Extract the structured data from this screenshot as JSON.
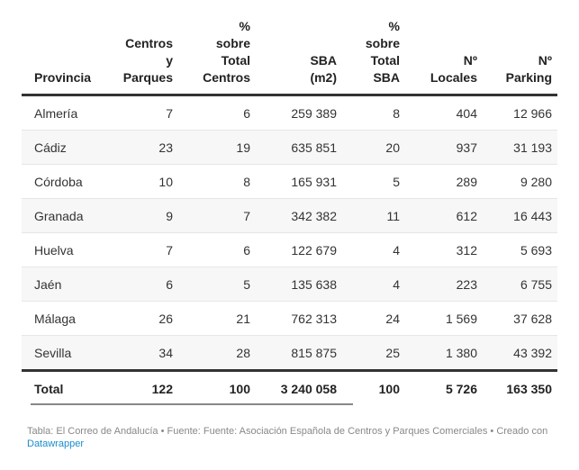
{
  "headers": [
    [
      "Provincia"
    ],
    [
      "Centros",
      "y",
      "Parques"
    ],
    [
      "%",
      "sobre",
      "Total",
      "Centros"
    ],
    [
      "SBA",
      "(m2)"
    ],
    [
      "%",
      "sobre",
      "Total",
      "SBA"
    ],
    [
      "Nº",
      "Locales"
    ],
    [
      "Nº",
      "Parking"
    ]
  ],
  "rows": [
    [
      "Almería",
      "7",
      "6",
      "259 389",
      "8",
      "404",
      "12 966"
    ],
    [
      "Cádiz",
      "23",
      "19",
      "635 851",
      "20",
      "937",
      "31 193"
    ],
    [
      "Córdoba",
      "10",
      "8",
      "165 931",
      "5",
      "289",
      "9 280"
    ],
    [
      "Granada",
      "9",
      "7",
      "342 382",
      "11",
      "612",
      "16 443"
    ],
    [
      "Huelva",
      "7",
      "6",
      "122 679",
      "4",
      "312",
      "5 693"
    ],
    [
      "Jaén",
      "6",
      "5",
      "135 638",
      "4",
      "223",
      "6 755"
    ],
    [
      "Málaga",
      "26",
      "21",
      "762 313",
      "24",
      "1 569",
      "37 628"
    ],
    [
      "Sevilla",
      "34",
      "28",
      "815 875",
      "25",
      "1 380",
      "43 392"
    ]
  ],
  "total": [
    "Total",
    "122",
    "100",
    "3 240 058",
    "100",
    "5 726",
    "163 350"
  ],
  "footer": {
    "text": "Tabla: El Correo de Andalucía • Fuente: Fuente: Asociación Española de Centros y Parques Comerciales • Creado con",
    "link": "Datawrapper"
  }
}
